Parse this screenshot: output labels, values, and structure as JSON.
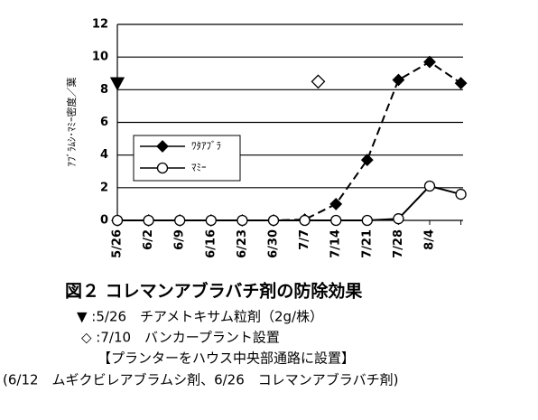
{
  "chart_data": {
    "type": "line",
    "y_label": "ｱﾌﾞﾗﾑｼ･ﾏﾐｰ密度／葉",
    "categories": [
      "5/26",
      "6/2",
      "6/9",
      "6/16",
      "6/23",
      "6/30",
      "7/7",
      "7/14",
      "7/21",
      "7/28",
      "8/4",
      null
    ],
    "series": [
      {
        "name": "ﾜﾀｱﾌﾞﾗ",
        "color": "#000000",
        "marker": "diamond",
        "values": [
          0,
          0,
          0,
          0,
          0,
          0,
          0.05,
          1,
          3.7,
          8.6,
          9.7,
          8.4
        ]
      },
      {
        "name": "ﾏﾐｰ",
        "color": "#000000",
        "marker": "circle",
        "values": [
          0,
          0,
          0,
          0,
          0,
          0,
          0,
          0,
          0,
          0.1,
          2.1,
          1.6
        ]
      }
    ],
    "markers": [
      {
        "symbol": "triangle",
        "x": 0,
        "value": 8.4
      },
      {
        "symbol": "open-diamond",
        "x": 6.43,
        "value": 8.5
      }
    ],
    "ylim": [
      0,
      12
    ],
    "yticks": [
      0,
      2,
      4,
      6,
      8,
      10,
      12
    ],
    "grid": true,
    "caption": [
      "図２ コレマンアブラバチ剤の防除効果",
      "▼ :5/26　チアメトキサム粒剤（2g/株）",
      "◇ :7/10　バンカープラント設置",
      "【プランターをハウス中央部通路に設置】",
      "(6/12　ムギクビレアブラムシ剤、6/26　コレマンアブラバチ剤)"
    ]
  }
}
